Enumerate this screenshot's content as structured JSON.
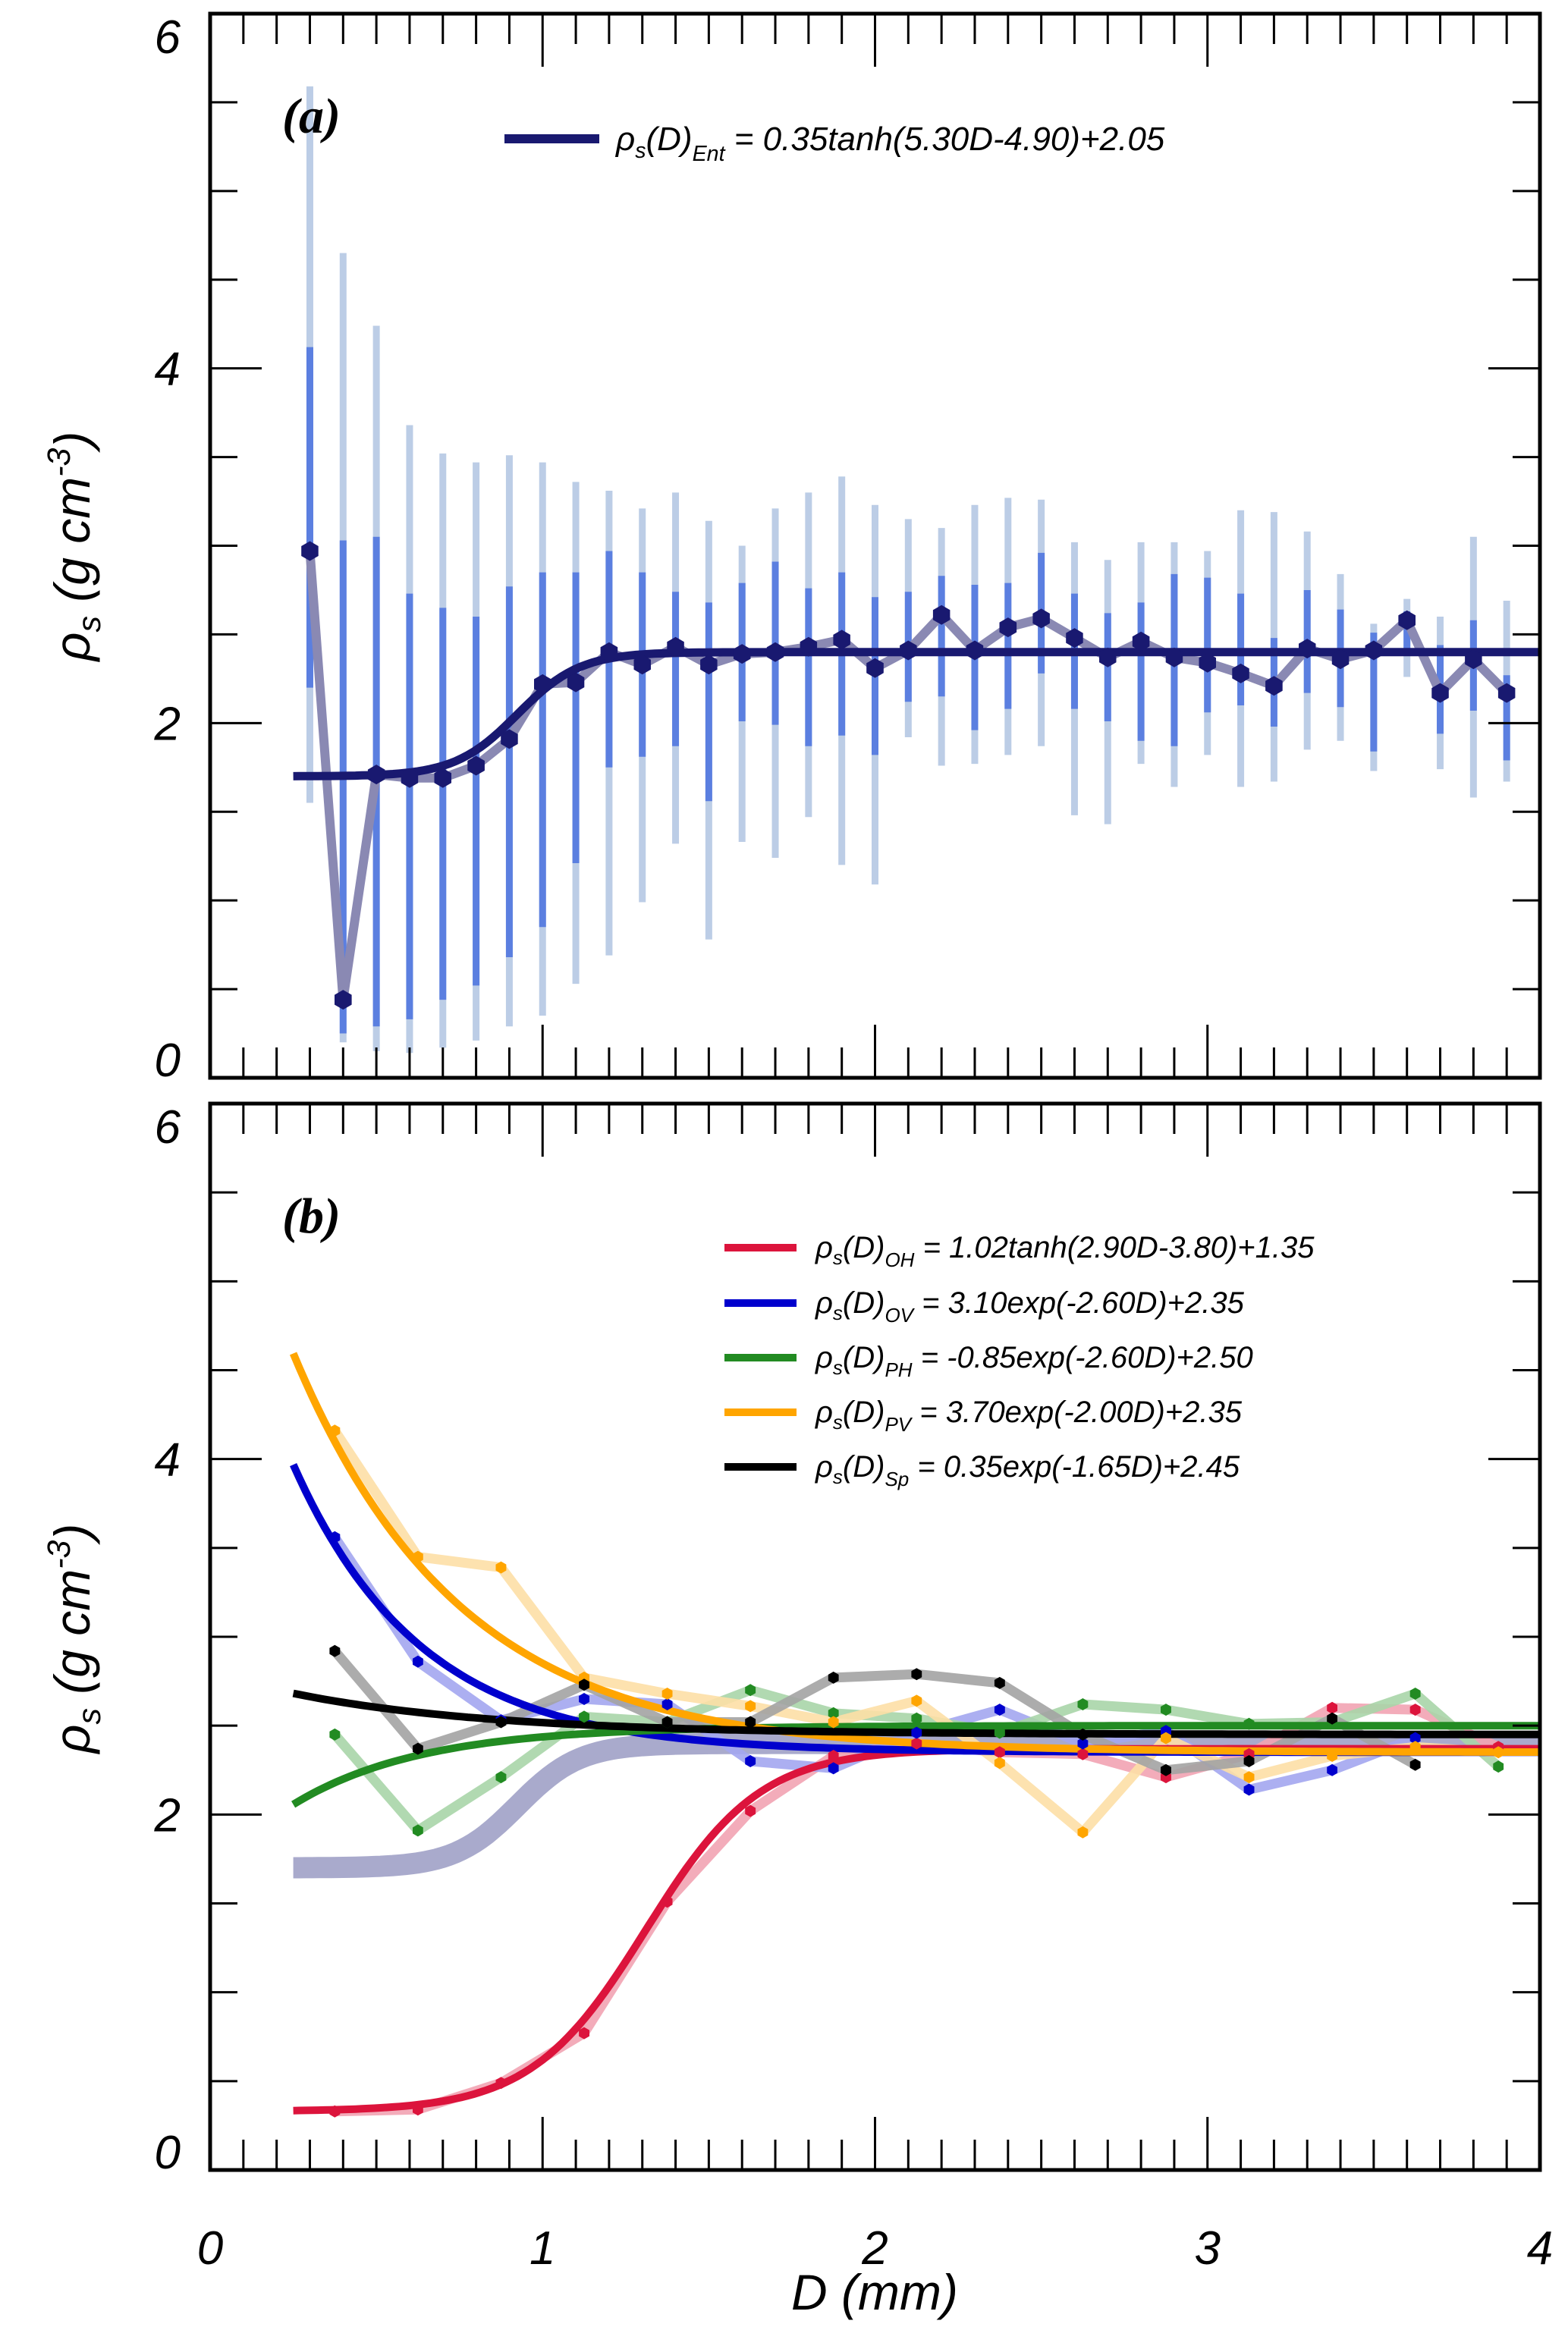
{
  "chart_data": [
    {
      "panel": "a",
      "type": "line",
      "panel_label": "(a)",
      "xlabel": "D (mm)",
      "ylabel": "ρs (g cm-3)",
      "ylabel_parts": {
        "symbol": "ρ",
        "sub": "s",
        "unit_open": " (g cm",
        "sup": "-3",
        "unit_close": ")"
      },
      "xlim": [
        0,
        4
      ],
      "ylim": [
        0,
        6
      ],
      "x_ticks": [
        "0",
        "1",
        "2",
        "3",
        "4"
      ],
      "y_ticks": [
        "0",
        "2",
        "4",
        "6"
      ],
      "x_minor_step": 0.1,
      "y_minor_step": 0.5,
      "grid": false,
      "legend": {
        "placement": "top-center",
        "entries": [
          {
            "name": "Ent",
            "color": "#191970",
            "prefix": "ρ",
            "sub1": "s",
            "mid": "(D)",
            "sub2": "Ent",
            "rest": " = 0.35tanh(5.30D-4.90)+2.05"
          }
        ]
      },
      "fit": {
        "name": "Ent",
        "kind": "tanh",
        "a": 0.35,
        "b": 5.3,
        "c": -4.9,
        "d": 2.05,
        "x_range": [
          0.25,
          4.0
        ],
        "color": "#191970"
      },
      "colors": {
        "point": "#191970",
        "connector": "#8a89b3",
        "inner_bar": "#5b7fe0",
        "outer_bar": "#bccde6"
      },
      "series": [
        {
          "name": "Ent observed",
          "x": [
            0.3,
            0.4,
            0.5,
            0.6,
            0.7,
            0.8,
            0.9,
            1.0,
            1.1,
            1.2,
            1.3,
            1.4,
            1.5,
            1.6,
            1.7,
            1.8,
            1.9,
            2.0,
            2.1,
            2.2,
            2.3,
            2.4,
            2.5,
            2.6,
            2.7,
            2.8,
            2.9,
            3.0,
            3.1,
            3.2,
            3.3,
            3.4,
            3.5,
            3.6,
            3.7,
            3.8,
            3.9
          ],
          "y": [
            2.97,
            0.44,
            1.71,
            1.69,
            1.69,
            1.76,
            1.91,
            2.22,
            2.23,
            2.4,
            2.33,
            2.43,
            2.33,
            2.39,
            2.4,
            2.43,
            2.47,
            2.31,
            2.41,
            2.61,
            2.41,
            2.54,
            2.59,
            2.48,
            2.37,
            2.46,
            2.37,
            2.34,
            2.28,
            2.21,
            2.42,
            2.36,
            2.41,
            2.58,
            2.17,
            2.36,
            2.17
          ],
          "inner_low": [
            2.2,
            0.25,
            0.29,
            0.33,
            0.44,
            0.52,
            0.68,
            0.85,
            1.21,
            1.75,
            1.81,
            1.87,
            1.56,
            2.01,
            1.99,
            1.87,
            1.93,
            1.82,
            2.12,
            2.15,
            1.96,
            2.08,
            2.28,
            2.08,
            2.01,
            1.9,
            1.87,
            2.06,
            2.1,
            1.98,
            2.17,
            2.09,
            1.84,
            2.42,
            1.94,
            2.07,
            1.79
          ],
          "inner_high": [
            4.12,
            3.03,
            3.05,
            2.73,
            2.65,
            2.6,
            2.77,
            2.85,
            2.85,
            2.97,
            2.85,
            2.74,
            2.68,
            2.79,
            2.91,
            2.76,
            2.85,
            2.71,
            2.74,
            2.83,
            2.78,
            2.79,
            2.96,
            2.73,
            2.62,
            2.68,
            2.84,
            2.82,
            2.73,
            2.48,
            2.75,
            2.64,
            2.51,
            2.63,
            2.44,
            2.58,
            2.27
          ],
          "outer_low": [
            1.55,
            0.2,
            0.15,
            0.14,
            0.17,
            0.21,
            0.29,
            0.35,
            0.53,
            0.69,
            0.99,
            1.32,
            0.78,
            1.33,
            1.24,
            1.47,
            1.2,
            1.09,
            1.92,
            1.76,
            1.77,
            1.82,
            1.87,
            1.48,
            1.43,
            1.77,
            1.64,
            1.82,
            1.64,
            1.67,
            1.85,
            1.9,
            1.73,
            2.26,
            1.74,
            1.58,
            1.67
          ],
          "outer_high": [
            5.59,
            4.65,
            4.24,
            3.68,
            3.52,
            3.47,
            3.51,
            3.47,
            3.36,
            3.31,
            3.21,
            3.3,
            3.14,
            3.0,
            3.21,
            3.3,
            3.39,
            3.23,
            3.15,
            3.1,
            3.23,
            3.27,
            3.26,
            3.02,
            2.92,
            3.02,
            3.02,
            2.97,
            3.2,
            3.19,
            3.08,
            2.84,
            2.56,
            2.7,
            2.6,
            3.05,
            2.69
          ]
        }
      ]
    },
    {
      "panel": "b",
      "type": "line",
      "panel_label": "(b)",
      "xlabel": "D (mm)",
      "ylabel": "ρs (g cm-3)",
      "ylabel_parts": {
        "symbol": "ρ",
        "sub": "s",
        "unit_open": " (g cm",
        "sup": "-3",
        "unit_close": ")"
      },
      "xlim": [
        0,
        4
      ],
      "ylim": [
        0,
        6
      ],
      "x_ticks": [
        "0",
        "1",
        "2",
        "3",
        "4"
      ],
      "y_ticks": [
        "0",
        "2",
        "4",
        "6"
      ],
      "x_minor_step": 0.1,
      "y_minor_step": 0.5,
      "grid": false,
      "legend": {
        "placement": "top-right",
        "entries": [
          {
            "name": "OH",
            "color": "#dc143c",
            "prefix": "ρ",
            "sub1": "s",
            "mid": "(D)",
            "sub2": "OH",
            "rest": " = 1.02tanh(2.90D-3.80)+1.35"
          },
          {
            "name": "OV",
            "color": "#0000cd",
            "prefix": "ρ",
            "sub1": "s",
            "mid": "(D)",
            "sub2": "OV",
            "rest": " = 3.10exp(-2.60D)+2.35"
          },
          {
            "name": "PH",
            "color": "#228b22",
            "prefix": "ρ",
            "sub1": "s",
            "mid": "(D)",
            "sub2": "PH",
            "rest": " = -0.85exp(-2.60D)+2.50"
          },
          {
            "name": "PV",
            "color": "#ffa500",
            "prefix": "ρ",
            "sub1": "s",
            "mid": "(D)",
            "sub2": "PV",
            "rest": " = 3.70exp(-2.00D)+2.35"
          },
          {
            "name": "Sp",
            "color": "#000000",
            "prefix": "ρ",
            "sub1": "s",
            "mid": "(D)",
            "sub2": "Sp",
            "rest": " = 0.35exp(-1.65D)+2.45"
          }
        ]
      },
      "reference_fit": {
        "name": "Ent",
        "kind": "tanh",
        "a": 0.35,
        "b": 5.3,
        "c": -4.9,
        "d": 2.05,
        "x_range": [
          0.25,
          4.0
        ],
        "color": "#a9aacc"
      },
      "fits": [
        {
          "name": "OH",
          "kind": "tanh",
          "a": 1.02,
          "b": 2.9,
          "c": -3.8,
          "d": 1.35,
          "x_range": [
            0.25,
            4.0
          ],
          "color": "#dc143c"
        },
        {
          "name": "OV",
          "kind": "exp",
          "a": 3.1,
          "b": -2.6,
          "d": 2.35,
          "x_range": [
            0.25,
            4.0
          ],
          "color": "#0000cd"
        },
        {
          "name": "PH",
          "kind": "exp",
          "a": -0.85,
          "b": -2.6,
          "d": 2.5,
          "x_range": [
            0.25,
            4.0
          ],
          "color": "#228b22"
        },
        {
          "name": "PV",
          "kind": "exp",
          "a": 3.7,
          "b": -2.0,
          "d": 2.35,
          "x_range": [
            0.25,
            4.0
          ],
          "color": "#ffa500"
        },
        {
          "name": "Sp",
          "kind": "exp",
          "a": 0.35,
          "b": -1.65,
          "d": 2.45,
          "x_range": [
            0.25,
            4.0
          ],
          "color": "#000000"
        }
      ],
      "series": [
        {
          "name": "OH",
          "color": "#dc143c",
          "light": "#f2a3b3",
          "x": [
            0.375,
            0.625,
            0.875,
            1.125,
            1.375,
            1.625,
            1.875,
            2.125,
            2.375,
            2.625,
            2.875,
            3.125,
            3.375,
            3.625,
            3.875
          ],
          "y": [
            0.33,
            0.34,
            0.49,
            0.77,
            1.51,
            2.02,
            2.33,
            2.4,
            2.35,
            2.34,
            2.21,
            2.34,
            2.6,
            2.59,
            2.38
          ]
        },
        {
          "name": "OV",
          "color": "#0000cd",
          "light": "#a3a6f0",
          "x": [
            0.375,
            0.625,
            0.875,
            1.125,
            1.375,
            1.625,
            1.875,
            2.125,
            2.375,
            2.625,
            2.875,
            3.125,
            3.375,
            3.625
          ],
          "y": [
            3.56,
            2.86,
            2.53,
            2.65,
            2.62,
            2.3,
            2.26,
            2.46,
            2.59,
            2.4,
            2.47,
            2.14,
            2.25,
            2.43
          ]
        },
        {
          "name": "PH",
          "color": "#228b22",
          "light": "#a8d5a8",
          "x": [
            0.375,
            0.625,
            0.875,
            1.125,
            1.375,
            1.625,
            1.875,
            2.125,
            2.375,
            2.625,
            2.875,
            3.125,
            3.375,
            3.625,
            3.875
          ],
          "y": [
            2.45,
            1.91,
            2.21,
            2.55,
            2.52,
            2.7,
            2.57,
            2.54,
            2.46,
            2.62,
            2.59,
            2.51,
            2.52,
            2.68,
            2.27
          ]
        },
        {
          "name": "PV",
          "color": "#ffa500",
          "light": "#fddfa6",
          "x": [
            0.375,
            0.625,
            0.875,
            1.125,
            1.375,
            1.625,
            1.875,
            2.125,
            2.375,
            2.625,
            2.875,
            3.125,
            3.375,
            3.625,
            3.875
          ],
          "y": [
            4.16,
            3.45,
            3.39,
            2.77,
            2.68,
            2.61,
            2.52,
            2.64,
            2.29,
            1.9,
            2.43,
            2.21,
            2.33,
            2.38,
            2.35
          ]
        },
        {
          "name": "Sp",
          "color": "#000000",
          "light": "#a3a3a3",
          "x": [
            0.375,
            0.625,
            0.875,
            1.125,
            1.375,
            1.625,
            1.875,
            2.125,
            2.375,
            2.625,
            2.875,
            3.125,
            3.375,
            3.625
          ],
          "y": [
            2.92,
            2.37,
            2.52,
            2.73,
            2.52,
            2.52,
            2.77,
            2.79,
            2.74,
            2.45,
            2.25,
            2.3,
            2.54,
            2.28
          ]
        }
      ]
    }
  ]
}
